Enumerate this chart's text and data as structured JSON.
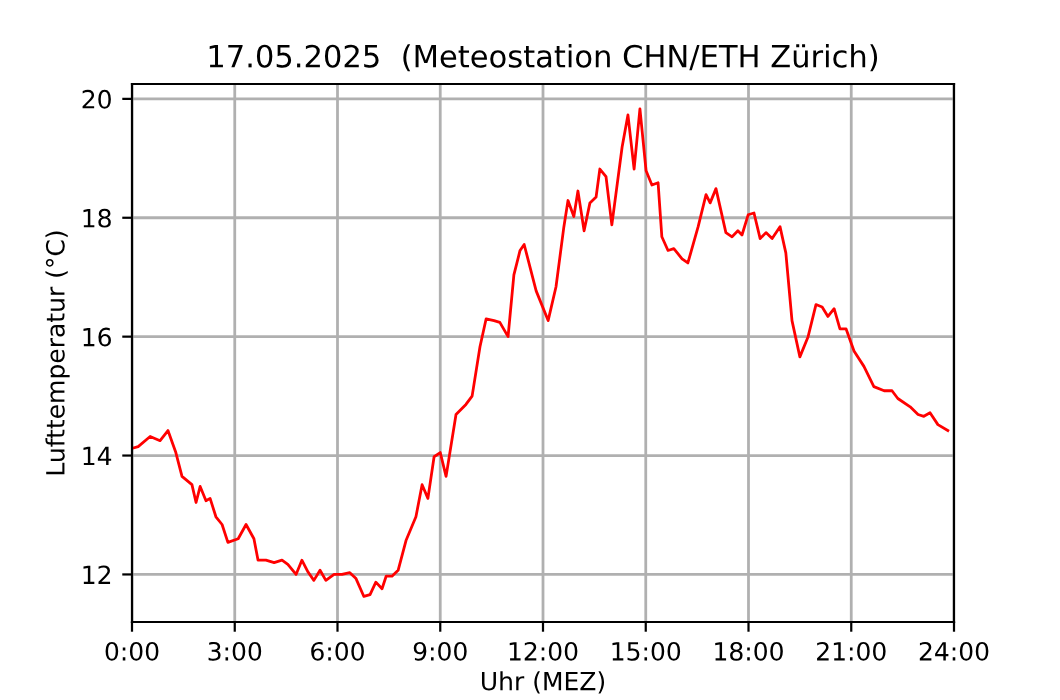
{
  "chart_data": {
    "type": "line",
    "title": "17.05.2025  (Meteostation CHN/ETH Zürich)",
    "xlabel": "Uhr (MEZ)",
    "ylabel": "Lufttemperatur (°C)",
    "series": [
      {
        "color": "#ff0000",
        "x": [
          0,
          0.18,
          0.53,
          0.82,
          1.05,
          1.28,
          1.46,
          1.75,
          1.87,
          1.99,
          2.16,
          2.28,
          2.45,
          2.63,
          2.8,
          3.1,
          3.33,
          3.56,
          3.68,
          3.91,
          4.15,
          4.38,
          4.55,
          4.79,
          4.96,
          5.14,
          5.31,
          5.49,
          5.66,
          5.9,
          6.13,
          6.36,
          6.54,
          6.77,
          6.95,
          7.12,
          7.3,
          7.42,
          7.59,
          7.77,
          8.0,
          8.29,
          8.47,
          8.64,
          8.82,
          9.0,
          9.17,
          9.46,
          9.75,
          9.93,
          10.16,
          10.34,
          10.57,
          10.74,
          10.98,
          11.15,
          11.33,
          11.45,
          11.8,
          12.15,
          12.38,
          12.61,
          12.73,
          12.9,
          13.02,
          13.2,
          13.37,
          13.55,
          13.66,
          13.84,
          14.01,
          14.31,
          14.48,
          14.66,
          14.83,
          15.01,
          15.18,
          15.36,
          15.47,
          15.65,
          15.82,
          16.06,
          16.23,
          16.53,
          16.76,
          16.88,
          17.05,
          17.34,
          17.52,
          17.69,
          17.81,
          17.99,
          18.16,
          18.34,
          18.51,
          18.69,
          18.92,
          19.09,
          19.27,
          19.5,
          19.74,
          19.97,
          20.15,
          20.32,
          20.5,
          20.67,
          20.85,
          21.08,
          21.37,
          21.66,
          21.96,
          22.19,
          22.36,
          22.72,
          22.95,
          23.12,
          23.3,
          23.53,
          23.82
        ],
        "values": [
          14.12,
          14.15,
          14.32,
          14.25,
          14.42,
          14.05,
          13.65,
          13.51,
          13.21,
          13.48,
          13.24,
          13.28,
          12.97,
          12.84,
          12.54,
          12.6,
          12.84,
          12.6,
          12.24,
          12.24,
          12.2,
          12.24,
          12.17,
          12.0,
          12.24,
          12.04,
          11.9,
          12.07,
          11.9,
          12.0,
          12.0,
          12.03,
          11.93,
          11.63,
          11.66,
          11.87,
          11.76,
          11.97,
          11.97,
          12.07,
          12.57,
          12.97,
          13.51,
          13.28,
          13.98,
          14.05,
          13.65,
          14.69,
          14.86,
          15.0,
          15.83,
          16.3,
          16.27,
          16.24,
          16.0,
          17.04,
          17.45,
          17.55,
          16.77,
          16.27,
          16.84,
          17.85,
          18.29,
          18.02,
          18.45,
          17.78,
          18.25,
          18.35,
          18.82,
          18.69,
          17.88,
          19.19,
          19.73,
          18.82,
          19.83,
          18.79,
          18.55,
          18.59,
          17.68,
          17.45,
          17.48,
          17.31,
          17.24,
          17.85,
          18.39,
          18.25,
          18.49,
          17.75,
          17.68,
          17.78,
          17.71,
          18.05,
          18.08,
          17.65,
          17.75,
          17.65,
          17.85,
          17.41,
          16.27,
          15.66,
          16.0,
          16.54,
          16.5,
          16.34,
          16.47,
          16.13,
          16.13,
          15.76,
          15.5,
          15.16,
          15.09,
          15.09,
          14.96,
          14.82,
          14.69,
          14.66,
          14.72,
          14.52,
          14.42
        ]
      }
    ],
    "xlim": [
      0,
      24
    ],
    "xticks": [
      {
        "value": 0,
        "label": "0:00"
      },
      {
        "value": 3,
        "label": "3:00"
      },
      {
        "value": 6,
        "label": "6:00"
      },
      {
        "value": 9,
        "label": "9:00"
      },
      {
        "value": 12,
        "label": "12:00"
      },
      {
        "value": 15,
        "label": "15:00"
      },
      {
        "value": 18,
        "label": "18:00"
      },
      {
        "value": 21,
        "label": "21:00"
      },
      {
        "value": 24,
        "label": "24:00"
      }
    ],
    "ylim": [
      11.2,
      20.25
    ],
    "yticks": [
      12,
      14,
      16,
      18,
      20
    ],
    "grid": true
  }
}
